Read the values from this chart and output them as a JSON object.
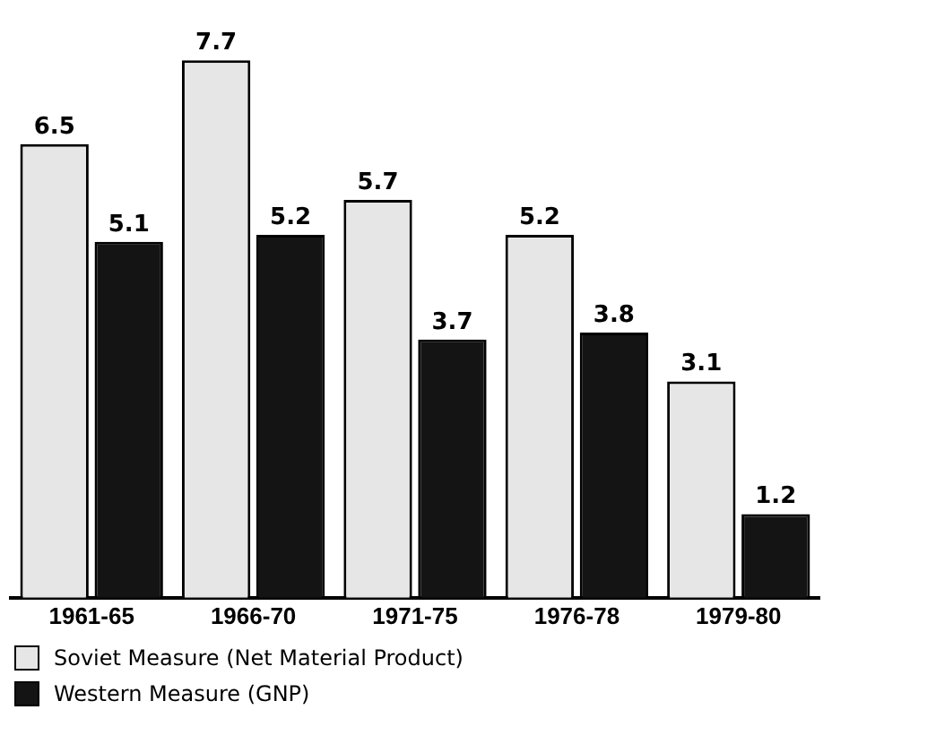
{
  "chart_data": {
    "type": "bar",
    "categories": [
      "1961-65",
      "1966-70",
      "1971-75",
      "1976-78",
      "1979-80"
    ],
    "series": [
      {
        "name": "Soviet Measure (Net Material Product)",
        "color": "#e6e6e6",
        "values": [
          6.5,
          7.7,
          5.7,
          5.2,
          3.1
        ]
      },
      {
        "name": "Western Measure (GNP)",
        "color": "#141414",
        "values": [
          5.1,
          5.2,
          3.7,
          3.8,
          1.2
        ]
      }
    ],
    "data_labels": true,
    "legend": "bottom left",
    "grid": false
  }
}
